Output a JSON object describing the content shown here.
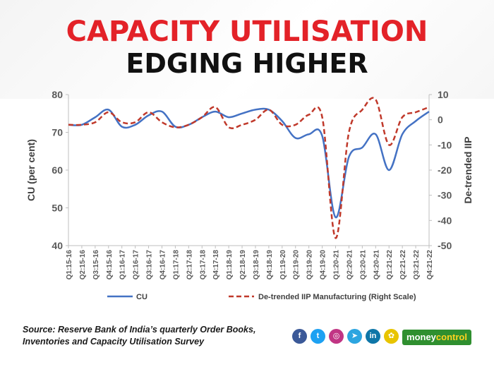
{
  "header": {
    "title_line1": "CAPACITY UTILISATION",
    "title_line2": "EDGING HIGHER"
  },
  "chart_data": {
    "type": "line",
    "categories": [
      "Q1:15-16",
      "Q2:15-16",
      "Q3:15-16",
      "Q4:15-16",
      "Q1:16-17",
      "Q2:16-17",
      "Q3:16-17",
      "Q4:16-17",
      "Q1:17-18",
      "Q2:17-18",
      "Q3:17-18",
      "Q4:17-18",
      "Q1:18-19",
      "Q2:18-19",
      "Q3:18-19",
      "Q4:18-19",
      "Q1:19-20",
      "Q2:19-20",
      "Q3:19-20",
      "Q4:19-20",
      "Q1:20-21",
      "Q2:20-21",
      "Q3:20-21",
      "Q4:20-21",
      "Q1:21-22",
      "Q2:21-22",
      "Q3:21-22",
      "Q4:21-22"
    ],
    "series": [
      {
        "name": "CU",
        "axis": "left",
        "color": "#4472c4",
        "style": "solid",
        "values": [
          72,
          72,
          74,
          76,
          71.5,
          72,
          74.5,
          75.5,
          71.5,
          72,
          74,
          75.5,
          74,
          75,
          76,
          76,
          73,
          68.5,
          69.5,
          69,
          47.5,
          63.5,
          66,
          69.5,
          60,
          69.5,
          73,
          75.5
        ]
      },
      {
        "name": "De-trended  IIP Manufacturing (Right Scale)",
        "axis": "right",
        "color": "#c0392b",
        "style": "dashed",
        "values": [
          -2,
          -2,
          -1,
          3,
          -1,
          -1,
          3,
          -1,
          -3,
          -2,
          1,
          5,
          -3,
          -2,
          0,
          4,
          -2,
          -2,
          2,
          1,
          -47,
          -5,
          4,
          8,
          -10,
          1,
          3,
          5
        ]
      }
    ],
    "left_axis": {
      "label": "CU (per cent)",
      "min": 40,
      "max": 80,
      "ticks": [
        "40",
        "50",
        "60",
        "70",
        "80"
      ]
    },
    "right_axis": {
      "label": "De-trended IIP",
      "min": -50,
      "max": 10,
      "ticks": [
        "-50",
        "-40",
        "-30",
        "-20",
        "-10",
        "0",
        "10"
      ]
    },
    "legend_position": "bottom"
  },
  "footer": {
    "source": "Source: Reserve Bank of India’s quarterly Order Books, Inventories and Capacity Utilisation Survey",
    "brand_part1": "money",
    "brand_part2": "control"
  },
  "social_icons": [
    {
      "name": "facebook-icon",
      "glyph": "f",
      "color": "#3b5998"
    },
    {
      "name": "twitter-icon",
      "glyph": "t",
      "color": "#1da1f2"
    },
    {
      "name": "instagram-icon",
      "glyph": "◎",
      "color": "#c13584"
    },
    {
      "name": "telegram-icon",
      "glyph": "➤",
      "color": "#2ca5e0"
    },
    {
      "name": "linkedin-icon",
      "glyph": "in",
      "color": "#0e76a8"
    },
    {
      "name": "snapchat-icon",
      "glyph": "✿",
      "color": "#e8c400"
    }
  ]
}
